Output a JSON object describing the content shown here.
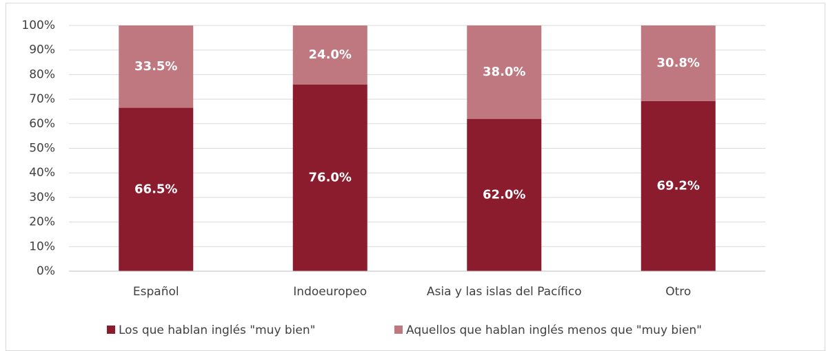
{
  "chart_data": {
    "type": "stacked_bar",
    "categories": [
      "Español",
      "Indoeuropeo",
      "Asia y las islas del Pacífico",
      "Otro"
    ],
    "series": [
      {
        "name": "Los que hablan inglés \"muy bien\"",
        "color": "#8b1c2e",
        "values": [
          66.5,
          76.0,
          62.0,
          69.2
        ],
        "value_labels": [
          "66.5%",
          "76.0%",
          "62.0%",
          "69.2%"
        ]
      },
      {
        "name": "Aquellos que hablan inglés menos que \"muy bien\"",
        "color": "#bf7880",
        "values": [
          33.5,
          24.0,
          38.0,
          30.8
        ],
        "value_labels": [
          "33.5%",
          "24.0%",
          "38.0%",
          "30.8%"
        ]
      }
    ],
    "ylim": [
      0,
      100
    ],
    "yticks": [
      {
        "value": 0,
        "label": "0%"
      },
      {
        "value": 10,
        "label": "10%"
      },
      {
        "value": 20,
        "label": "20%"
      },
      {
        "value": 30,
        "label": "30%"
      },
      {
        "value": 40,
        "label": "40%"
      },
      {
        "value": 50,
        "label": "50%"
      },
      {
        "value": 60,
        "label": "60%"
      },
      {
        "value": 70,
        "label": "70%"
      },
      {
        "value": 80,
        "label": "80%"
      },
      {
        "value": 90,
        "label": "90%"
      },
      {
        "value": 100,
        "label": "100%"
      }
    ],
    "grid": true,
    "legend": "bottom"
  }
}
